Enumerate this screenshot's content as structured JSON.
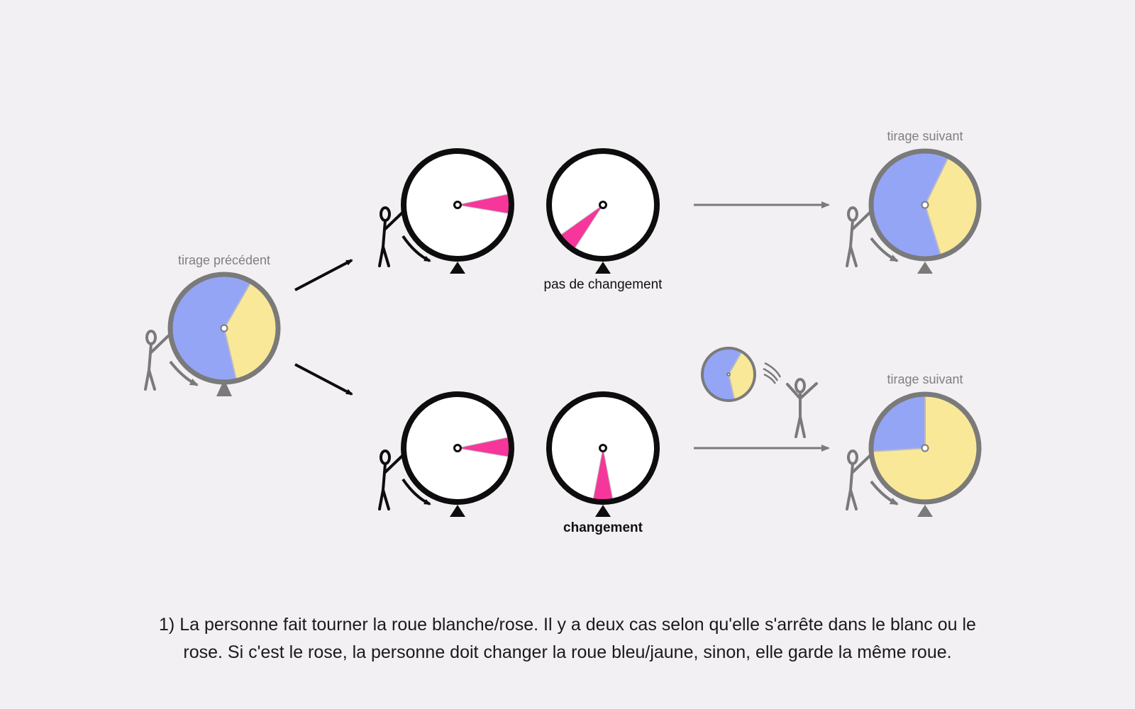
{
  "labels": {
    "previous": "tirage précédent",
    "next_top": "tirage suivant",
    "next_bottom": "tirage suivant",
    "no_change": "pas de changement",
    "change": "changement"
  },
  "caption": {
    "line1": "1) La personne fait tourner la roue blanche/rose. Il y a deux cas selon qu'elle s'arrête dans le blanc ou le",
    "line2": "rose. Si c'est le rose, la personne doit changer la roue bleu/jaune, sinon, elle garde la même roue."
  },
  "colors": {
    "blue": "#94a5f6",
    "yellow": "#f9e897",
    "pink": "#f6369b",
    "white": "#ffffff",
    "gray": "#7a7a7a",
    "black": "#0d0d0d",
    "background": "#f2f0f3"
  },
  "wheels": {
    "previous": {
      "blue_fraction": 0.62
    },
    "next_top": {
      "blue_fraction": 0.62
    },
    "next_bottom": {
      "blue_fraction": 0.26
    },
    "discarded": {
      "blue_fraction": 0.62
    },
    "spin_white_pink": {
      "pink_fraction": 0.06
    }
  },
  "icons": [
    "stick-figure-icon",
    "rotation-arrow-icon",
    "pointer-triangle-icon",
    "throw-motion-icon"
  ]
}
